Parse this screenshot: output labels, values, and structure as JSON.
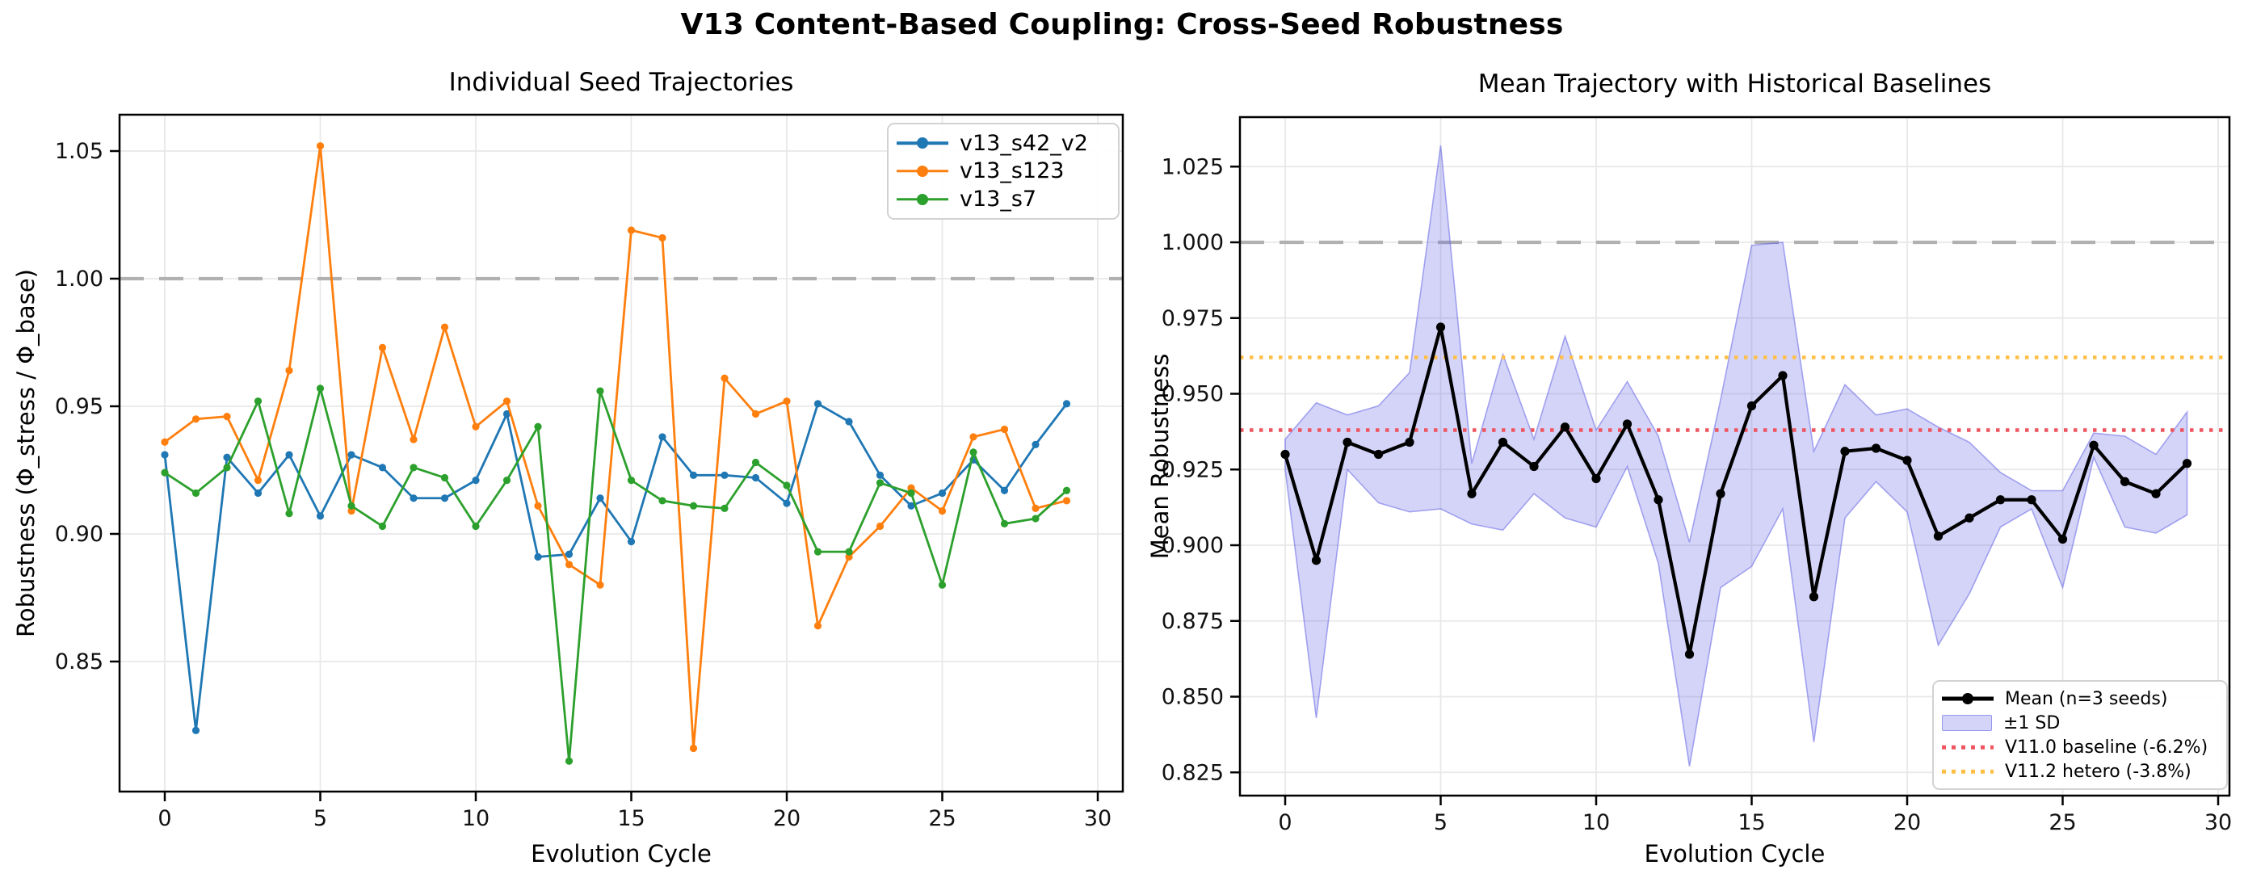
{
  "figure": {
    "suptitle": "V13 Content-Based Coupling: Cross-Seed Robustness"
  },
  "palette": {
    "blue": "#1f77b4",
    "orange": "#ff7f0e",
    "green": "#2ca02c",
    "black": "#000000",
    "band_fill": "rgba(100,100,230,0.28)",
    "band_edge": "rgba(100,100,230,0.55)",
    "red_baseline": "#ee5560",
    "orange_baseline": "#ffbf47",
    "unity": "#b1b1b1",
    "grid": "#e8e8e8",
    "spine": "#000000",
    "tick_text": "#111111"
  },
  "chart_data": [
    {
      "type": "line",
      "title": "Individual Seed Trajectories",
      "xlabel": "Evolution Cycle",
      "ylabel": "Robustness (Φ_stress / Φ_base)",
      "x": [
        0,
        1,
        2,
        3,
        4,
        5,
        6,
        7,
        8,
        9,
        10,
        11,
        12,
        13,
        14,
        15,
        16,
        17,
        18,
        19,
        20,
        21,
        22,
        23,
        24,
        25,
        26,
        27,
        28,
        29
      ],
      "xticks": [
        0,
        5,
        10,
        15,
        20,
        25,
        30
      ],
      "ytick_values": [
        0.85,
        0.9,
        0.95,
        1.0,
        1.05
      ],
      "ytick_labels": [
        "0.85",
        "0.90",
        "0.95",
        "1.00",
        "1.05"
      ],
      "xlim": [
        -1.5,
        30.8
      ],
      "ylim": [
        0.799,
        1.064
      ],
      "grid": true,
      "unity_line": 1.0,
      "legend_position": "upper right",
      "series": [
        {
          "name": "v13_s42_v2",
          "color": "blue",
          "values": [
            0.931,
            0.823,
            0.93,
            0.916,
            0.931,
            0.907,
            0.931,
            0.926,
            0.914,
            0.914,
            0.921,
            0.947,
            0.891,
            0.892,
            0.914,
            0.897,
            0.938,
            0.923,
            0.923,
            0.922,
            0.912,
            0.951,
            0.944,
            0.923,
            0.911,
            0.916,
            0.929,
            0.917,
            0.935,
            0.951
          ]
        },
        {
          "name": "v13_s123",
          "color": "orange",
          "values": [
            0.936,
            0.945,
            0.946,
            0.921,
            0.964,
            1.052,
            0.909,
            0.973,
            0.937,
            0.981,
            0.942,
            0.952,
            0.911,
            0.888,
            0.88,
            1.019,
            1.016,
            0.816,
            0.961,
            0.947,
            0.952,
            0.864,
            0.891,
            0.903,
            0.918,
            0.909,
            0.938,
            0.941,
            0.91,
            0.913
          ]
        },
        {
          "name": "v13_s7",
          "color": "green",
          "values": [
            0.924,
            0.916,
            0.926,
            0.952,
            0.908,
            0.957,
            0.911,
            0.903,
            0.926,
            0.922,
            0.903,
            0.921,
            0.942,
            0.811,
            0.956,
            0.921,
            0.913,
            0.911,
            0.91,
            0.928,
            0.919,
            0.893,
            0.893,
            0.92,
            0.916,
            0.88,
            0.932,
            0.904,
            0.906,
            0.917
          ]
        }
      ]
    },
    {
      "type": "line+band",
      "title": "Mean Trajectory with Historical Baselines",
      "xlabel": "Evolution Cycle",
      "ylabel": "Mean Robustness",
      "x": [
        0,
        1,
        2,
        3,
        4,
        5,
        6,
        7,
        8,
        9,
        10,
        11,
        12,
        13,
        14,
        15,
        16,
        17,
        18,
        19,
        20,
        21,
        22,
        23,
        24,
        25,
        26,
        27,
        28,
        29
      ],
      "xticks": [
        0,
        5,
        10,
        15,
        20,
        25,
        30
      ],
      "ytick_values": [
        0.825,
        0.85,
        0.875,
        0.9,
        0.925,
        0.95,
        0.975,
        1.0,
        1.025
      ],
      "ytick_labels": [
        "0.825",
        "0.850",
        "0.875",
        "0.900",
        "0.925",
        "0.950",
        "0.975",
        "1.000",
        "1.025"
      ],
      "xlim": [
        -1.5,
        30.4
      ],
      "ylim": [
        0.817,
        1.041
      ],
      "grid": true,
      "unity_line": 1.0,
      "legend_position": "lower right",
      "mean_series": {
        "name": "Mean (n=3 seeds)",
        "color": "black",
        "values": [
          0.93,
          0.895,
          0.934,
          0.93,
          0.934,
          0.972,
          0.917,
          0.934,
          0.926,
          0.939,
          0.922,
          0.94,
          0.915,
          0.864,
          0.917,
          0.946,
          0.956,
          0.883,
          0.931,
          0.932,
          0.928,
          0.903,
          0.909,
          0.915,
          0.915,
          0.902,
          0.933,
          0.921,
          0.917,
          0.927
        ]
      },
      "band": {
        "name": "±1 SD",
        "sd": [
          0.005,
          0.052,
          0.009,
          0.016,
          0.023,
          0.06,
          0.01,
          0.029,
          0.009,
          0.03,
          0.016,
          0.014,
          0.021,
          0.037,
          0.031,
          0.053,
          0.044,
          0.048,
          0.022,
          0.011,
          0.017,
          0.036,
          0.025,
          0.009,
          0.003,
          0.016,
          0.004,
          0.015,
          0.013,
          0.017
        ]
      },
      "baselines": [
        {
          "name": "V11.0 baseline (-6.2%)",
          "value": 0.938,
          "color": "red_baseline"
        },
        {
          "name": "V11.2 hetero (-3.8%)",
          "value": 0.962,
          "color": "orange_baseline"
        }
      ]
    }
  ]
}
